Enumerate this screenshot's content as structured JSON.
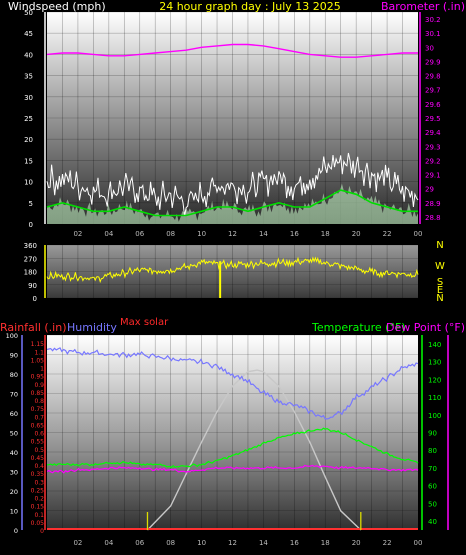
{
  "title": "24 hour graph day : July 13 2025",
  "colors": {
    "background": "#000000",
    "wind_label": "#ffffff",
    "title": "#ffff00",
    "barometer": "#ff00ff",
    "wind_gust": "#ffffff",
    "wind_avg": "#00dd00",
    "wind_fill": "#ccffcc",
    "direction": "#ffff00",
    "compass": "#ffff00",
    "max_solar_label": "#ff2a2a",
    "rainfall": "#ff3030",
    "humidity": "#7777ff",
    "temperature": "#00ff00",
    "dew_point": "#ff00ff",
    "solar": "#c8c8c8",
    "day_marker": "#dddd00",
    "tick_text": "#bbbbbb"
  },
  "wind_panel": {
    "left_axis_label": "Windspeed (mph)",
    "right_axis_label": "Barometer (.in)",
    "left_ticks": [
      "0",
      "5",
      "10",
      "15",
      "20",
      "25",
      "30",
      "35",
      "40",
      "45",
      "50"
    ],
    "right_ticks": [
      "28.8",
      "28.9",
      "29",
      "29.1",
      "29.2",
      "29.3",
      "29.4",
      "29.5",
      "29.6",
      "29.7",
      "29.8",
      "29.9",
      "30",
      "30.1",
      "30.2"
    ],
    "x_ticks": [
      "02",
      "04",
      "06",
      "08",
      "10",
      "12",
      "14",
      "16",
      "18",
      "20",
      "22",
      "00"
    ]
  },
  "direction_panel": {
    "left_ticks": [
      "0",
      "90",
      "180",
      "270",
      "360"
    ],
    "compass_labels": [
      "N",
      "W",
      "S",
      "E",
      "N"
    ]
  },
  "temp_panel": {
    "rain_axis_label": "Rainfall (.in)",
    "humidity_axis_label": "Humidity",
    "max_solar_label": "Max solar",
    "temp_axis_label": "Temperature (°F)",
    "dew_axis_label": "Dew Point (°F)",
    "humidity_ticks": [
      "0",
      "10",
      "20",
      "30",
      "40",
      "50",
      "60",
      "70",
      "80",
      "90",
      "100"
    ],
    "rain_ticks": [
      "0",
      "0.05",
      "0.1",
      "0.15",
      "0.2",
      "0.25",
      "0.3",
      "0.35",
      "0.4",
      "0.45",
      "0.5",
      "0.55",
      "0.6",
      "0.65",
      "0.7",
      "0.75",
      "0.8",
      "0.85",
      "0.9",
      "0.95",
      "1",
      "1.05",
      "1.1",
      "1.15"
    ],
    "temp_ticks": [
      "40",
      "50",
      "60",
      "70",
      "80",
      "90",
      "100",
      "110",
      "120",
      "130",
      "140"
    ],
    "x_ticks": [
      "02",
      "04",
      "06",
      "08",
      "10",
      "12",
      "14",
      "16",
      "18",
      "20",
      "22",
      "00"
    ]
  },
  "chart_data": [
    {
      "type": "line",
      "title": "24 hour graph day : July 13 2025",
      "x_unit": "hour of day",
      "xlim": [
        0,
        24
      ],
      "ylabel": "Windspeed (mph)",
      "ylim": [
        0,
        50
      ],
      "y2label": "Barometer (.in)",
      "y2lim": [
        28.75,
        30.25
      ],
      "series": [
        {
          "axis": "right",
          "x": [
            0,
            1,
            2,
            3,
            4,
            5,
            6,
            7,
            8,
            9,
            10,
            11,
            12,
            13,
            14,
            15,
            16,
            17,
            18,
            19,
            20,
            21,
            22,
            23,
            24
          ],
          "values": [
            29.95,
            29.96,
            29.96,
            29.95,
            29.94,
            29.94,
            29.95,
            29.96,
            29.97,
            29.98,
            30.0,
            30.01,
            30.02,
            30.02,
            30.01,
            29.99,
            29.97,
            29.95,
            29.94,
            29.93,
            29.93,
            29.94,
            29.95,
            29.96,
            29.96
          ]
        },
        {
          "axis": "left",
          "x": [
            0,
            1,
            2,
            3,
            4,
            5,
            6,
            7,
            8,
            9,
            10,
            11,
            12,
            13,
            14,
            15,
            16,
            17,
            18,
            19,
            20,
            21,
            22,
            23,
            24
          ],
          "values": [
            10,
            11,
            9,
            8,
            7,
            9,
            8,
            6,
            7,
            5,
            7,
            9,
            9,
            8,
            10,
            11,
            9,
            11,
            13,
            15,
            14,
            12,
            10,
            8,
            7
          ]
        },
        {
          "axis": "left",
          "x": [
            0,
            1,
            2,
            3,
            4,
            5,
            6,
            7,
            8,
            9,
            10,
            11,
            12,
            13,
            14,
            15,
            16,
            17,
            18,
            19,
            20,
            21,
            22,
            23,
            24
          ],
          "values": [
            4,
            5,
            4,
            3,
            3,
            4,
            3,
            2,
            2,
            2,
            3,
            4,
            4,
            3,
            4,
            5,
            4,
            4,
            6,
            8,
            7,
            5,
            4,
            3,
            3
          ]
        }
      ]
    },
    {
      "type": "line",
      "x_unit": "hour of day",
      "xlim": [
        0,
        24
      ],
      "ylim": [
        0,
        360
      ],
      "series": [
        {
          "x": [
            0,
            1,
            2,
            3,
            4,
            5,
            6,
            7,
            8,
            9,
            10,
            11,
            12,
            13,
            14,
            15,
            16,
            17,
            18,
            19,
            20,
            21,
            22,
            23,
            24
          ],
          "values": [
            145,
            150,
            145,
            130,
            150,
            170,
            190,
            185,
            190,
            210,
            240,
            230,
            225,
            230,
            235,
            240,
            245,
            250,
            240,
            220,
            200,
            175,
            170,
            165,
            160
          ]
        }
      ]
    },
    {
      "type": "line",
      "x_unit": "hour of day",
      "xlim": [
        0,
        24
      ],
      "ylabel": "Humidity",
      "ylim": [
        0,
        100
      ],
      "y2label": "Temperature (°F)",
      "y2lim": [
        35,
        145
      ],
      "series": [
        {
          "axis": "left",
          "x": [
            0,
            1,
            2,
            3,
            4,
            5,
            6,
            7,
            8,
            9,
            10,
            11,
            12,
            13,
            14,
            15,
            16,
            17,
            18,
            19,
            20,
            21,
            22,
            23,
            24
          ],
          "values": [
            93,
            92,
            91,
            91,
            90,
            90,
            90,
            89,
            88,
            87,
            86,
            84,
            80,
            76,
            70,
            66,
            64,
            61,
            57,
            60,
            68,
            73,
            78,
            83,
            85
          ]
        },
        {
          "axis": "right",
          "x": [
            0,
            1,
            2,
            3,
            4,
            5,
            6,
            7,
            8,
            9,
            10,
            11,
            12,
            13,
            14,
            15,
            16,
            17,
            18,
            19,
            20,
            21,
            22,
            23,
            24
          ],
          "values": [
            72,
            72,
            72,
            72,
            73,
            73,
            72,
            72,
            71,
            71,
            72,
            74,
            77,
            80,
            84,
            87,
            89,
            91,
            92,
            90,
            86,
            82,
            78,
            75,
            73
          ]
        },
        {
          "axis": "right",
          "x": [
            0,
            1,
            2,
            3,
            4,
            5,
            6,
            7,
            8,
            9,
            10,
            11,
            12,
            13,
            14,
            15,
            16,
            17,
            18,
            19,
            20,
            21,
            22,
            23,
            24
          ],
          "values": [
            68,
            68,
            69,
            69,
            70,
            70,
            70,
            69,
            69,
            68,
            69,
            70,
            70,
            70,
            70,
            70,
            70,
            71,
            71,
            70,
            70,
            70,
            69,
            69,
            69
          ]
        },
        {
          "axis": "solar",
          "x": [
            6.5,
            8,
            9,
            10,
            11,
            12,
            13,
            13.6,
            14,
            15,
            16,
            17,
            18,
            19,
            20.3
          ],
          "values": [
            0,
            0.15,
            0.35,
            0.55,
            0.74,
            0.9,
            0.99,
            1.0,
            0.99,
            0.9,
            0.74,
            0.55,
            0.33,
            0.12,
            0
          ]
        },
        {
          "axis": "rain",
          "x": [
            0,
            24
          ],
          "values": [
            0,
            0
          ]
        }
      ]
    }
  ]
}
